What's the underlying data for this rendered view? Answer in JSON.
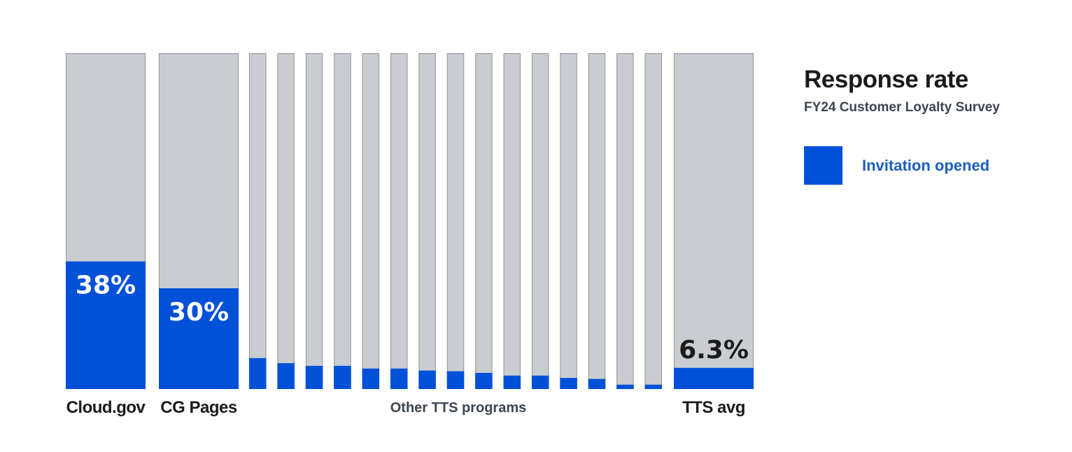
{
  "legend": {
    "title": "Response rate",
    "subtitle": "FY24 Customer Loyalty Survey",
    "series_label": "Invitation opened"
  },
  "colors": {
    "track": "#c9cdd1",
    "track_border": "#8f9398",
    "fill": "#0050d8",
    "legend_label": "#1a5fbf",
    "text_dark": "#1b1b1b",
    "text_light": "#ffffff",
    "group_label": "#3d4551"
  },
  "chart_data": {
    "type": "bar",
    "title": "Response rate",
    "subtitle": "FY24 Customer Loyalty Survey",
    "ylim": [
      0,
      100
    ],
    "grid": false,
    "legend_position": "right",
    "series": [
      {
        "name": "Invitation opened",
        "values": [
          38,
          30,
          9.2,
          7.7,
          6.9,
          6.9,
          6.1,
          6.1,
          5.5,
          5.3,
          4.8,
          4.0,
          4.0,
          3.3,
          3.0,
          1.3,
          1.3,
          6.3
        ]
      }
    ],
    "categories": [
      "Cloud.gov",
      "CG Pages",
      "",
      "",
      "",
      "",
      "",
      "",
      "",
      "",
      "",
      "",
      "",
      "",
      "",
      "",
      "",
      "TTS avg"
    ],
    "data_labels": [
      "38%",
      "30%",
      "",
      "",
      "",
      "",
      "",
      "",
      "",
      "",
      "",
      "",
      "",
      "",
      "",
      "",
      "",
      "6.3%"
    ],
    "group_label": "Other TTS programs"
  }
}
